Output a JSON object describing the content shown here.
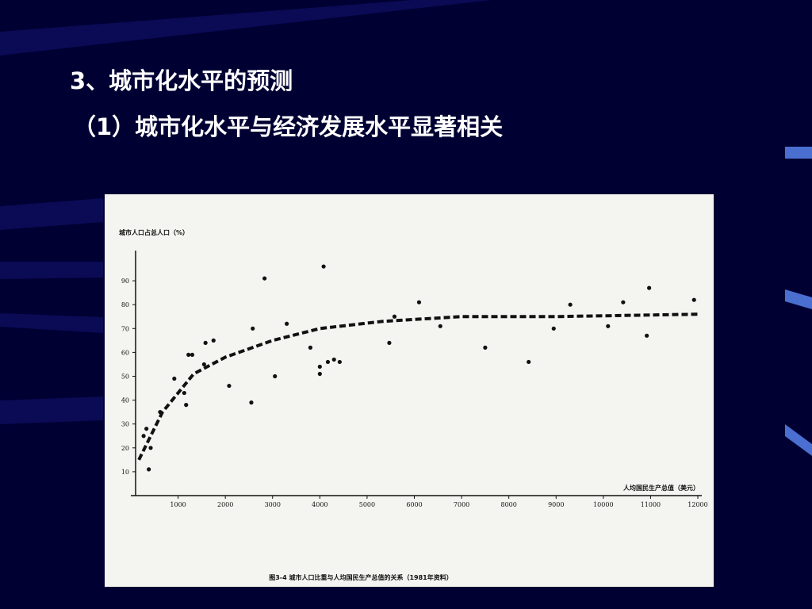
{
  "slide": {
    "heading": "3、城市化水平的预测",
    "subheading": "（1）城市化水平与经济发展水平显著相关"
  },
  "chart_data": {
    "type": "scatter",
    "y_label": "城市人口占总人口（%）",
    "x_label": "人均国民生产总值（美元）",
    "caption": "图3-4  城市人口比重与人均国民生产总值的关系（1981年资料）",
    "xlim": [
      0,
      12000
    ],
    "ylim": [
      0,
      100
    ],
    "xticks": [
      1000,
      2000,
      3000,
      4000,
      5000,
      6000,
      7000,
      8000,
      9000,
      10000,
      11000,
      12000
    ],
    "yticks": [
      10,
      20,
      30,
      40,
      50,
      60,
      70,
      80,
      90
    ],
    "series": [
      {
        "color": "#111111",
        "marker": "dot",
        "x": [
          270,
          330,
          420,
          380,
          620,
          920,
          1130,
          1220,
          1300,
          1170,
          1580,
          1750,
          1550,
          2080,
          2580,
          2550,
          2830,
          3050,
          3300,
          3800,
          4000,
          4000,
          4080,
          4170,
          4300,
          4420,
          5470,
          5580,
          6100,
          6550,
          7500,
          8420,
          8950,
          9300,
          10100,
          10420,
          10920,
          10970,
          11920
        ],
        "values": [
          25,
          28,
          20,
          11,
          35,
          49,
          43,
          59,
          59,
          38,
          64,
          65,
          55,
          46,
          70,
          39,
          91,
          50,
          72,
          62,
          54,
          51,
          96,
          56,
          57,
          56,
          64,
          75,
          81,
          71,
          62,
          56,
          70,
          80,
          71,
          81,
          67,
          87,
          82
        ]
      },
      {
        "color": "#111111",
        "line_style": "dashed",
        "x": [
          170,
          670,
          1330,
          2000,
          3000,
          4000,
          5330,
          7000,
          9000,
          12000
        ],
        "values": [
          15,
          35,
          51,
          58,
          65,
          70,
          73,
          75,
          75,
          76
        ]
      }
    ]
  }
}
